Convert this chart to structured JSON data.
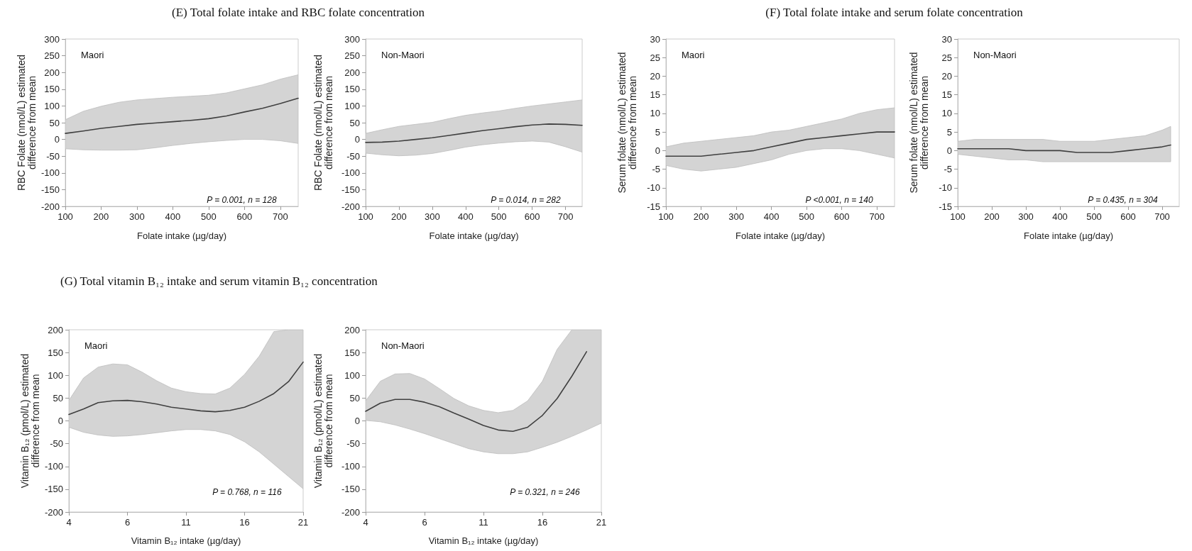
{
  "chart_data": [
    {
      "type": "line",
      "title": "(E) Total folate intake and RBC folate concentration",
      "xlabel": "Folate intake (µg/day)",
      "ylabel": "RBC Folate (nmol/L) estimated difference from mean",
      "annotations": [
        "Maori",
        "P = 0.001, n = 128"
      ],
      "x": [
        100,
        150,
        200,
        250,
        300,
        350,
        400,
        450,
        500,
        550,
        600,
        650,
        700,
        750
      ],
      "xlim": [
        100,
        750
      ],
      "xticks": [
        100,
        200,
        300,
        400,
        500,
        600,
        700
      ],
      "ylim": [
        -200,
        300
      ],
      "yticks": [
        -200,
        -150,
        -100,
        -50,
        0,
        50,
        100,
        150,
        200,
        250,
        300
      ],
      "grid": false,
      "marker": "none",
      "series": [
        {
          "color": "#404040",
          "values": [
            18,
            25,
            33,
            39,
            45,
            49,
            53,
            57,
            62,
            70,
            82,
            93,
            107,
            123
          ],
          "upper": [
            59,
            84,
            99,
            111,
            118,
            122,
            126,
            129,
            132,
            139,
            151,
            163,
            180,
            193
          ],
          "lower": [
            -28,
            -31,
            -32,
            -32,
            -31,
            -25,
            -18,
            -12,
            -7,
            -3,
            0,
            0,
            -4,
            -12
          ]
        }
      ]
    },
    {
      "type": "line",
      "xlabel": "Folate intake (µg/day)",
      "ylabel": "RBC Folate (nmol/L) estimated difference from mean",
      "annotations": [
        "Non-Maori",
        "P = 0.014, n = 282"
      ],
      "x": [
        100,
        150,
        200,
        250,
        300,
        350,
        400,
        450,
        500,
        550,
        600,
        650,
        700,
        750
      ],
      "xlim": [
        100,
        750
      ],
      "xticks": [
        100,
        200,
        300,
        400,
        500,
        600,
        700
      ],
      "ylim": [
        -200,
        300
      ],
      "yticks": [
        -200,
        -150,
        -100,
        -50,
        0,
        50,
        100,
        150,
        200,
        250,
        300
      ],
      "grid": false,
      "marker": "none",
      "series": [
        {
          "color": "#404040",
          "values": [
            -9,
            -8,
            -5,
            0,
            5,
            12,
            19,
            26,
            32,
            38,
            43,
            46,
            45,
            42
          ],
          "upper": [
            18,
            29,
            39,
            45,
            51,
            62,
            72,
            79,
            85,
            93,
            100,
            106,
            112,
            118
          ],
          "lower": [
            -41,
            -46,
            -49,
            -47,
            -42,
            -33,
            -23,
            -16,
            -11,
            -7,
            -5,
            -8,
            -22,
            -38
          ]
        }
      ]
    },
    {
      "type": "line",
      "title": "(F) Total folate intake and serum folate concentration",
      "xlabel": "Folate intake (µg/day)",
      "ylabel": "Serum folate (nmol/L) estimated difference from mean",
      "annotations": [
        "Maori",
        "P <0.001, n = 140"
      ],
      "x": [
        100,
        150,
        200,
        250,
        300,
        350,
        400,
        450,
        500,
        550,
        600,
        650,
        700,
        750
      ],
      "xlim": [
        100,
        750
      ],
      "xticks": [
        100,
        200,
        300,
        400,
        500,
        600,
        700
      ],
      "ylim": [
        -15,
        30
      ],
      "yticks": [
        -15,
        -10,
        -5,
        0,
        5,
        10,
        15,
        20,
        25,
        30
      ],
      "grid": false,
      "marker": "none",
      "series": [
        {
          "color": "#404040",
          "values": [
            -1.5,
            -1.5,
            -1.5,
            -1,
            -0.5,
            0,
            1,
            2,
            3,
            3.5,
            4,
            4.5,
            5,
            5
          ],
          "upper": [
            1,
            2,
            2.5,
            3,
            3.5,
            4,
            5,
            5.5,
            6.5,
            7.5,
            8.5,
            10,
            11,
            11.5
          ],
          "lower": [
            -4,
            -5,
            -5.5,
            -5,
            -4.5,
            -3.5,
            -2.5,
            -1,
            0,
            0.5,
            0.5,
            0,
            -1,
            -2
          ]
        }
      ]
    },
    {
      "type": "line",
      "xlabel": "Folate intake (µg/day)",
      "ylabel": "Serum folate (nmol/L) estimated difference from mean",
      "annotations": [
        "Non-Maori",
        "P = 0.435, n = 304"
      ],
      "x": [
        100,
        150,
        200,
        250,
        300,
        350,
        400,
        450,
        500,
        550,
        600,
        650,
        700,
        725
      ],
      "xlim": [
        100,
        750
      ],
      "xticks": [
        100,
        200,
        300,
        400,
        500,
        600,
        700
      ],
      "ylim": [
        -15,
        30
      ],
      "yticks": [
        -15,
        -10,
        -5,
        0,
        5,
        10,
        15,
        20,
        25,
        30
      ],
      "grid": false,
      "marker": "none",
      "series": [
        {
          "color": "#404040",
          "values": [
            0.5,
            0.5,
            0.5,
            0.5,
            0,
            0,
            0,
            -0.5,
            -0.5,
            -0.5,
            0,
            0.5,
            1,
            1.5
          ],
          "upper": [
            2.5,
            3,
            3,
            3,
            3,
            3,
            2.5,
            2.5,
            2.5,
            3,
            3.5,
            4,
            5.5,
            6.5
          ],
          "lower": [
            -1,
            -1.5,
            -2,
            -2.5,
            -2.5,
            -3,
            -3,
            -3,
            -3,
            -3,
            -3,
            -3,
            -3,
            -3
          ]
        }
      ]
    },
    {
      "type": "line",
      "title": "(G) Total vitamin B₁₂ intake and serum vitamin B₁₂ concentration",
      "xlabel": "Vitamin B₁₂ intake (µg/day)",
      "ylabel": "Vitamin B₁₂ (pmol/L) estimated difference from mean",
      "annotations": [
        "Maori",
        "P = 0.768, n = 116"
      ],
      "categories": [
        "4",
        null,
        null,
        null,
        "6",
        null,
        null,
        null,
        "11",
        null,
        null,
        null,
        "16",
        null,
        null,
        null,
        "21"
      ],
      "ylim": [
        -200,
        200
      ],
      "yticks": [
        -200,
        -150,
        -100,
        -50,
        0,
        50,
        100,
        150,
        200
      ],
      "grid": false,
      "marker": "none",
      "series": [
        {
          "color": "#404040",
          "values": [
            14,
            26,
            40,
            44,
            45,
            42,
            37,
            30,
            26,
            22,
            20,
            23,
            30,
            43,
            60,
            86,
            129
          ],
          "upper": [
            45,
            94,
            118,
            125,
            123,
            107,
            88,
            72,
            64,
            60,
            59,
            72,
            102,
            142,
            196,
            200,
            200
          ],
          "lower": [
            -14,
            -25,
            -31,
            -34,
            -33,
            -30,
            -26,
            -22,
            -19,
            -19,
            -22,
            -30,
            -46,
            -68,
            -95,
            -122,
            -149
          ]
        }
      ]
    },
    {
      "type": "line",
      "xlabel": "Vitamin B₁₂ intake (µg/day)",
      "ylabel": "Vitamin B₁₂ (pmol/L) estimated difference from mean",
      "annotations": [
        "Non-Maori",
        "P = 0.321, n = 246"
      ],
      "categories": [
        "4",
        null,
        null,
        null,
        "6",
        null,
        null,
        null,
        "11",
        null,
        null,
        null,
        "16",
        null,
        null,
        null,
        "21"
      ],
      "ylim": [
        -200,
        200
      ],
      "yticks": [
        -200,
        -150,
        -100,
        -50,
        0,
        50,
        100,
        150,
        200
      ],
      "grid": false,
      "marker": "none",
      "series": [
        {
          "color": "#404040",
          "values": [
            21,
            39,
            47,
            47,
            41,
            31,
            17,
            4,
            -10,
            -20,
            -23,
            -14,
            12,
            49,
            98,
            152,
            null
          ],
          "upper": [
            44,
            87,
            103,
            104,
            92,
            71,
            49,
            33,
            23,
            18,
            23,
            44,
            87,
            157,
            200,
            200,
            200
          ],
          "lower": [
            1,
            -2,
            -9,
            -18,
            -28,
            -39,
            -50,
            -61,
            -68,
            -72,
            -72,
            -68,
            -58,
            -47,
            -34,
            -20,
            -5
          ]
        }
      ]
    }
  ]
}
